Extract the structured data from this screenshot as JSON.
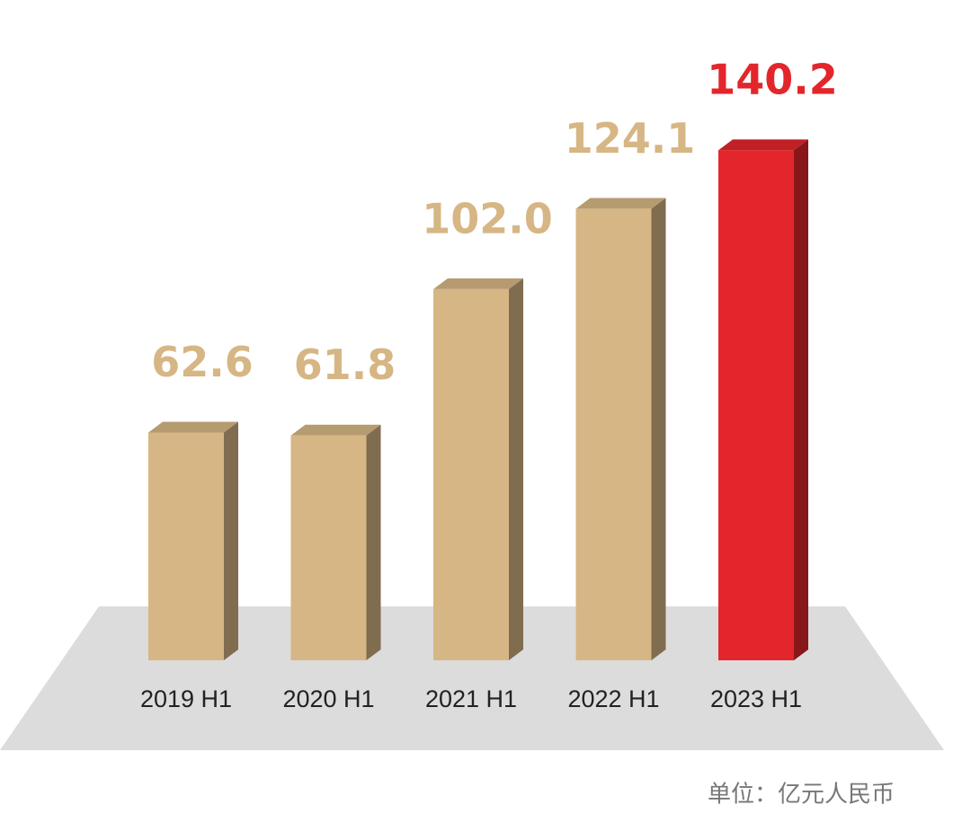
{
  "chart_data": {
    "type": "bar",
    "categories": [
      "2019 H1",
      "2020 H1",
      "2021 H1",
      "2022 H1",
      "2023 H1"
    ],
    "values": [
      62.6,
      61.8,
      102.0,
      124.1,
      140.2
    ],
    "value_labels": [
      "62.6",
      "61.8",
      "102.0",
      "124.1",
      "140.2"
    ],
    "colors": [
      "#d6b684",
      "#d6b684",
      "#d6b684",
      "#d6b684",
      "#e3262b"
    ],
    "note": "单位：亿元人民币"
  }
}
